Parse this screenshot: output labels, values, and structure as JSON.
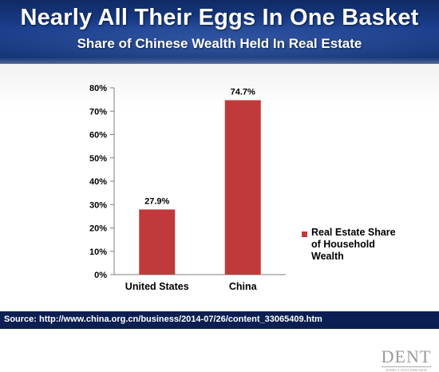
{
  "header": {
    "title": "Nearly All Their Eggs In One Basket",
    "subtitle": "Share of Chinese Wealth Held In Real Estate"
  },
  "chart_data": {
    "type": "bar",
    "categories": [
      "United States",
      "China"
    ],
    "values": [
      27.9,
      74.7
    ],
    "data_labels": [
      "27.9%",
      "74.7%"
    ],
    "series_name": "Real Estate Share of Household Wealth",
    "ylim": [
      0,
      80
    ],
    "yticks": [
      0,
      10,
      20,
      30,
      40,
      50,
      60,
      70,
      80
    ],
    "ytick_labels": [
      "0%",
      "10%",
      "20%",
      "30%",
      "40%",
      "50%",
      "60%",
      "70%",
      "80%"
    ],
    "xlabel": "",
    "ylabel": "",
    "grid": false,
    "legend_position": "right",
    "bar_color": "#c0393b"
  },
  "legend": {
    "label": "Real Estate Share of Household Wealth"
  },
  "logo": {
    "text": "DENT",
    "tagline": "HARRY S. DENT RESEARCH"
  },
  "footer": {
    "source": "Source: http://www.china.org.cn/business/2014-07/26/content_33065409.htm"
  }
}
